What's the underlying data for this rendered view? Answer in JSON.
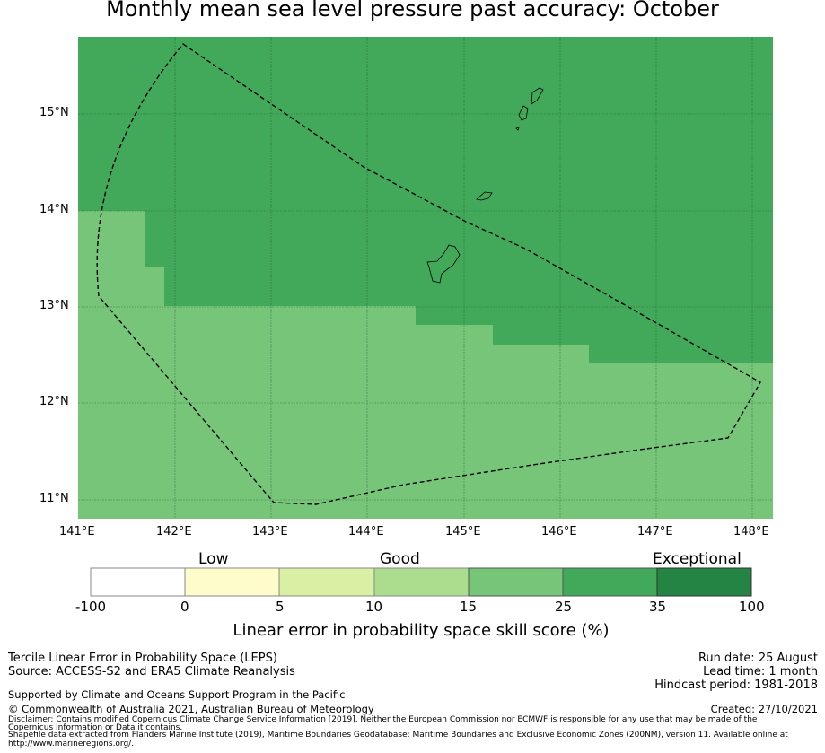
{
  "title": "Monthly mean sea level pressure past accuracy: October",
  "map": {
    "lon_ticks": [
      "141°E",
      "142°E",
      "143°E",
      "144°E",
      "145°E",
      "146°E",
      "147°E",
      "148°E"
    ],
    "lat_ticks": [
      "15°N",
      "14°N",
      "13°N",
      "12°N",
      "11°N"
    ],
    "colors": {
      "category_25_35": "#42a95b",
      "category_15_25": "#77c579",
      "grid": "#1a4d2a",
      "boundary": "#000000"
    },
    "land_icon": "island-outline"
  },
  "colorbar": {
    "category_labels": [
      "Low",
      "Good",
      "Exceptional"
    ],
    "tick_labels": [
      "-100",
      "0",
      "5",
      "10",
      "15",
      "25",
      "35",
      "100"
    ],
    "colors": [
      "#ffffff",
      "#fffccc",
      "#d9efa3",
      "#acdd8e",
      "#77c579",
      "#42a95b",
      "#238443"
    ],
    "caption": "Linear error in probability space skill score (%)"
  },
  "info": {
    "method": "Tercile Linear Error in Probability Space (LEPS)",
    "source": "Source: ACCESS-S2 and ERA5 Climate Reanalysis",
    "run_date": "Run date: 25 August",
    "lead_time": "Lead time: 1 month",
    "hindcast": "Hindcast period: 1981-2018",
    "support": "Supported by Climate and Oceans Support Program in the Pacific",
    "copyright": "© Commonwealth of Australia 2021, Australian Bureau of Meteorology",
    "created": "Created: 27/10/2021",
    "disclaimer_1": "Disclaimer: Contains modified Copernicus Climate Change Service Information [2019]. Neither the European Commission nor ECMWF is responsible for any use that may be made of the",
    "disclaimer_2": "Copernicus Information or Data it contains.",
    "shapefile_1": "Shapefile data extracted from Flanders Marine Institute (2019), Maritime Boundaries Geodatabase: Maritime Boundaries and Exclusive Economic Zones (200NM), version 11. Available online at",
    "shapefile_2": "http://www.marineregions.org/."
  }
}
